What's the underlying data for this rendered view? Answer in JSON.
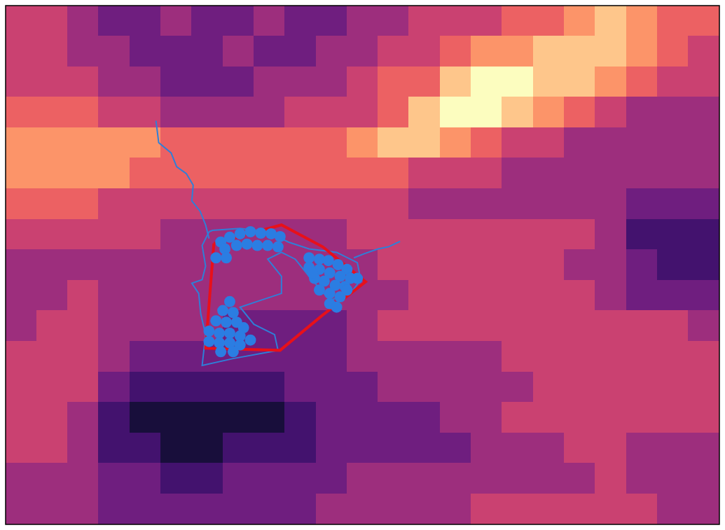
{
  "chart_data": {
    "type": "scatter",
    "xlim": [
      0,
      1035
    ],
    "ylim": [
      0,
      757
    ],
    "tick_labels": false,
    "grid": false,
    "heatmap": {
      "range": [
        0,
        9
      ],
      "cells": [
        [
          5,
          5,
          4,
          3,
          3,
          4,
          3,
          3,
          4,
          3,
          3,
          4,
          4,
          5,
          5,
          5,
          6,
          6,
          7,
          8,
          7,
          6,
          6
        ],
        [
          5,
          5,
          4,
          4,
          3,
          3,
          3,
          4,
          3,
          3,
          4,
          4,
          5,
          5,
          6,
          7,
          7,
          8,
          8,
          8,
          7,
          6,
          5
        ],
        [
          5,
          5,
          5,
          4,
          4,
          3,
          3,
          3,
          4,
          4,
          4,
          5,
          6,
          6,
          8,
          9,
          9,
          8,
          8,
          7,
          6,
          5,
          5
        ],
        [
          6,
          6,
          6,
          5,
          5,
          4,
          4,
          4,
          4,
          5,
          5,
          5,
          6,
          8,
          9,
          9,
          8,
          7,
          6,
          5,
          4,
          4,
          4
        ],
        [
          7,
          7,
          7,
          7,
          7,
          6,
          6,
          6,
          6,
          6,
          6,
          7,
          8,
          8,
          7,
          6,
          5,
          5,
          4,
          4,
          4,
          4,
          4
        ],
        [
          7,
          7,
          7,
          7,
          6,
          6,
          6,
          6,
          6,
          6,
          6,
          6,
          6,
          5,
          5,
          5,
          4,
          4,
          4,
          4,
          4,
          4,
          4
        ],
        [
          6,
          6,
          6,
          5,
          5,
          5,
          5,
          5,
          5,
          5,
          5,
          5,
          5,
          4,
          4,
          4,
          4,
          4,
          4,
          4,
          3,
          3,
          3
        ],
        [
          5,
          5,
          5,
          5,
          5,
          4,
          4,
          4,
          4,
          4,
          4,
          5,
          5,
          5,
          5,
          5,
          5,
          5,
          5,
          4,
          2,
          2,
          2
        ],
        [
          4,
          4,
          4,
          4,
          4,
          4,
          4,
          4,
          4,
          4,
          4,
          4,
          5,
          5,
          5,
          5,
          5,
          5,
          4,
          4,
          3,
          2,
          2
        ],
        [
          4,
          4,
          5,
          4,
          4,
          4,
          4,
          4,
          4,
          4,
          4,
          4,
          4,
          5,
          5,
          5,
          5,
          5,
          5,
          4,
          3,
          3,
          3
        ],
        [
          4,
          5,
          5,
          4,
          4,
          4,
          4,
          3,
          3,
          3,
          3,
          4,
          5,
          5,
          5,
          5,
          5,
          5,
          5,
          5,
          5,
          5,
          4
        ],
        [
          5,
          5,
          5,
          4,
          3,
          3,
          3,
          3,
          3,
          3,
          3,
          4,
          4,
          4,
          4,
          4,
          5,
          5,
          5,
          5,
          5,
          5,
          5
        ],
        [
          5,
          5,
          5,
          3,
          2,
          2,
          2,
          2,
          2,
          3,
          3,
          3,
          4,
          4,
          4,
          4,
          4,
          5,
          5,
          5,
          5,
          5,
          5
        ],
        [
          5,
          5,
          4,
          2,
          1,
          1,
          1,
          1,
          1,
          2,
          3,
          3,
          3,
          3,
          4,
          4,
          5,
          5,
          5,
          5,
          5,
          5,
          5
        ],
        [
          5,
          5,
          4,
          2,
          2,
          1,
          1,
          2,
          2,
          2,
          3,
          3,
          3,
          3,
          3,
          4,
          4,
          4,
          5,
          5,
          4,
          4,
          4
        ],
        [
          4,
          4,
          4,
          3,
          3,
          2,
          2,
          3,
          3,
          3,
          3,
          4,
          4,
          4,
          4,
          4,
          4,
          4,
          4,
          5,
          4,
          4,
          4
        ],
        [
          4,
          4,
          4,
          3,
          3,
          3,
          3,
          3,
          3,
          3,
          4,
          4,
          4,
          4,
          4,
          5,
          5,
          5,
          5,
          5,
          5,
          4,
          4
        ]
      ]
    },
    "series": [
      {
        "type": "line",
        "color": "#2f7fd8",
        "line_style": "solid",
        "marker": "none",
        "values": [
          [
            218,
            168
          ],
          [
            222,
            200
          ],
          [
            240,
            215
          ],
          [
            248,
            235
          ],
          [
            262,
            245
          ],
          [
            272,
            262
          ],
          [
            270,
            285
          ],
          [
            282,
            300
          ],
          [
            290,
            320
          ],
          [
            295,
            340
          ]
        ]
      },
      {
        "type": "line",
        "color": "#2f7fd8",
        "line_style": "solid",
        "marker": "none",
        "values": [
          [
            505,
            368
          ],
          [
            520,
            362
          ],
          [
            540,
            355
          ],
          [
            555,
            352
          ],
          [
            572,
            344
          ]
        ]
      },
      {
        "type": "line",
        "color": "#2f7fd8",
        "line_style": "solid",
        "marker": "none",
        "values": [
          [
            295,
            330
          ],
          [
            285,
            350
          ],
          [
            290,
            380
          ],
          [
            285,
            400
          ],
          [
            270,
            405
          ],
          [
            280,
            420
          ],
          [
            283,
            450
          ],
          [
            290,
            480
          ],
          [
            285,
            525
          ],
          [
            330,
            515
          ],
          [
            395,
            503
          ],
          [
            390,
            480
          ],
          [
            360,
            465
          ],
          [
            340,
            440
          ],
          [
            370,
            430
          ],
          [
            400,
            420
          ],
          [
            400,
            395
          ],
          [
            380,
            370
          ],
          [
            400,
            360
          ],
          [
            420,
            370
          ],
          [
            440,
            395
          ],
          [
            470,
            430
          ],
          [
            500,
            420
          ],
          [
            515,
            400
          ],
          [
            510,
            375
          ],
          [
            480,
            360
          ],
          [
            440,
            355
          ],
          [
            410,
            345
          ],
          [
            380,
            330
          ],
          [
            340,
            325
          ],
          [
            300,
            328
          ],
          [
            295,
            330
          ]
        ]
      },
      {
        "type": "line",
        "color": "#e8101a",
        "line_style": "solid",
        "marker": "none",
        "values": [
          [
            302,
            347
          ],
          [
            400,
            320
          ],
          [
            460,
            352
          ],
          [
            522,
            403
          ],
          [
            458,
            453
          ],
          [
            398,
            503
          ],
          [
            290,
            500
          ],
          [
            302,
            347
          ]
        ]
      },
      {
        "type": "scatter",
        "color": "#2b7de2",
        "marker": "circle",
        "values": [
          [
            312,
            345
          ],
          [
            325,
            338
          ],
          [
            340,
            333
          ],
          [
            355,
            330
          ],
          [
            370,
            332
          ],
          [
            385,
            333
          ],
          [
            398,
            337
          ],
          [
            318,
            355
          ],
          [
            335,
            350
          ],
          [
            350,
            348
          ],
          [
            365,
            350
          ],
          [
            380,
            350
          ],
          [
            395,
            352
          ],
          [
            305,
            368
          ],
          [
            320,
            368
          ],
          [
            440,
            368
          ],
          [
            455,
            370
          ],
          [
            468,
            372
          ],
          [
            482,
            378
          ],
          [
            495,
            385
          ],
          [
            440,
            382
          ],
          [
            455,
            385
          ],
          [
            470,
            390
          ],
          [
            485,
            395
          ],
          [
            500,
            398
          ],
          [
            510,
            398
          ],
          [
            448,
            398
          ],
          [
            462,
            402
          ],
          [
            478,
            408
          ],
          [
            492,
            410
          ],
          [
            455,
            415
          ],
          [
            470,
            420
          ],
          [
            485,
            425
          ],
          [
            470,
            435
          ],
          [
            480,
            440
          ],
          [
            495,
            415
          ],
          [
            445,
            390
          ],
          [
            325,
            432
          ],
          [
            315,
            445
          ],
          [
            330,
            448
          ],
          [
            305,
            460
          ],
          [
            320,
            462
          ],
          [
            335,
            462
          ],
          [
            345,
            470
          ],
          [
            295,
            475
          ],
          [
            310,
            478
          ],
          [
            325,
            478
          ],
          [
            340,
            482
          ],
          [
            355,
            488
          ],
          [
            295,
            490
          ],
          [
            310,
            492
          ],
          [
            325,
            492
          ],
          [
            340,
            495
          ],
          [
            330,
            505
          ],
          [
            312,
            505
          ]
        ]
      }
    ]
  }
}
